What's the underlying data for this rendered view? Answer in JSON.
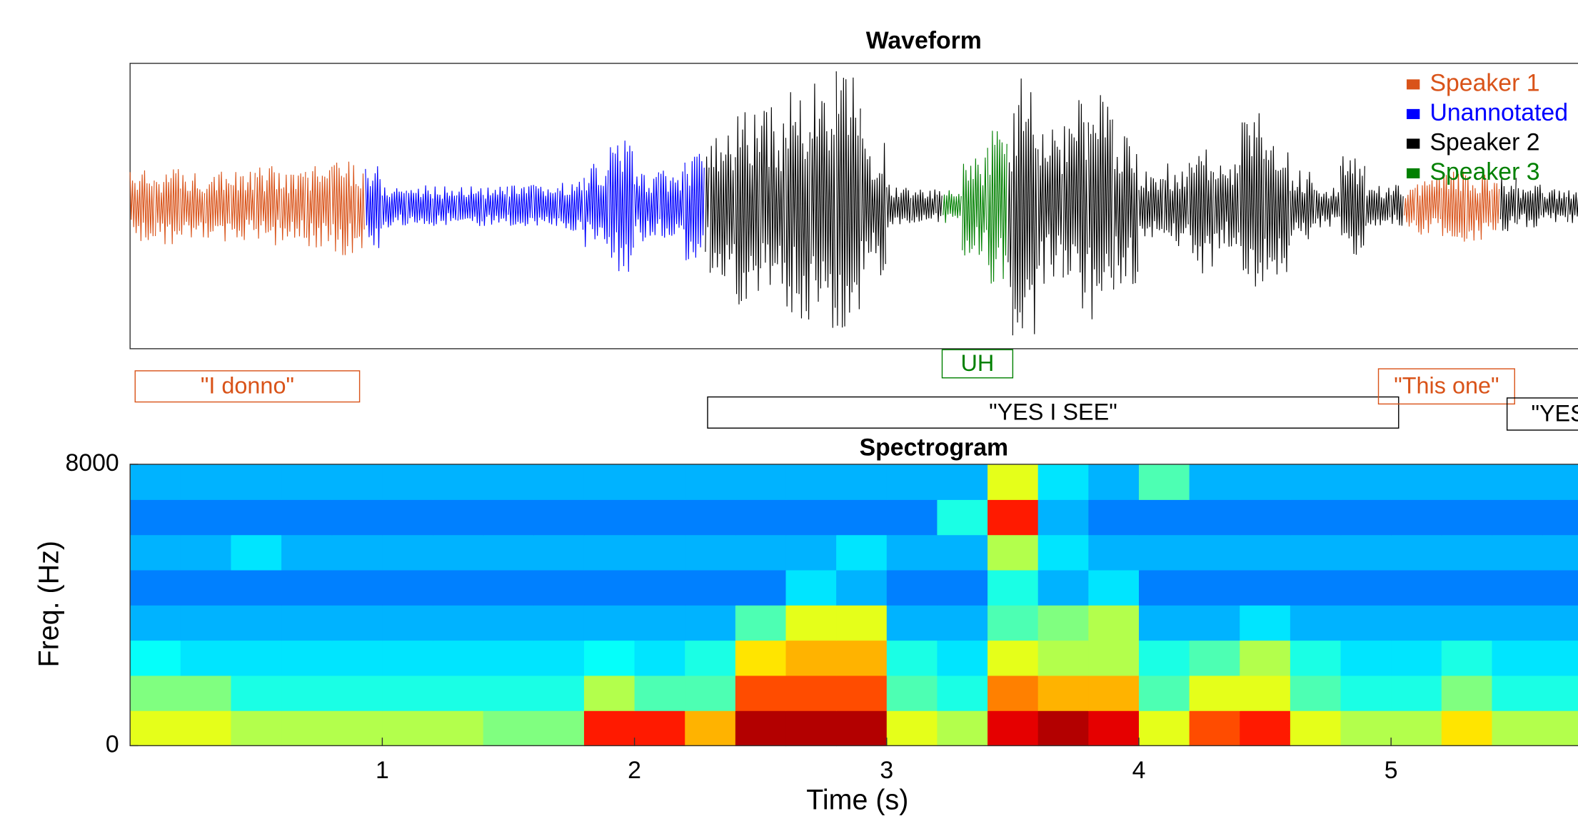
{
  "chart_data": [
    {
      "type": "waveform",
      "title": "Waveform",
      "xlim": [
        0,
        5.74
      ],
      "ylim": [
        -1,
        1
      ],
      "x": [
        0,
        0.1,
        0.2,
        0.3,
        0.4,
        0.5,
        0.6,
        0.7,
        0.8,
        0.9,
        1.0,
        1.1,
        1.2,
        1.3,
        1.4,
        1.5,
        1.6,
        1.7,
        1.8,
        1.9,
        2.0,
        2.1,
        2.2,
        2.3,
        2.4,
        2.5,
        2.6,
        2.7,
        2.8,
        2.9,
        3.0,
        3.1,
        3.2,
        3.3,
        3.4,
        3.5,
        3.6,
        3.7,
        3.8,
        3.9,
        4.0,
        4.1,
        4.2,
        4.3,
        4.4,
        4.5,
        4.6,
        4.7,
        4.8,
        4.9,
        5.0,
        5.1,
        5.2,
        5.3,
        5.4,
        5.5,
        5.6,
        5.7
      ],
      "values": [
        0.25,
        0.27,
        0.25,
        0.3,
        0.25,
        0.28,
        0.25,
        0.3,
        0.35,
        0.3,
        0.15,
        0.15,
        0.14,
        0.15,
        0.14,
        0.15,
        0.15,
        0.18,
        0.3,
        0.5,
        0.25,
        0.25,
        0.4,
        0.5,
        0.7,
        0.7,
        0.8,
        0.9,
        0.95,
        0.5,
        0.15,
        0.12,
        0.12,
        0.35,
        0.6,
        0.95,
        0.55,
        0.75,
        0.8,
        0.6,
        0.25,
        0.3,
        0.5,
        0.3,
        0.65,
        0.5,
        0.25,
        0.15,
        0.4,
        0.15,
        0.15,
        0.2,
        0.25,
        0.25,
        0.2,
        0.15,
        0.12,
        0.12
      ],
      "series": [
        {
          "name": "Speaker 1",
          "color": "#d95319"
        },
        {
          "name": "Unannotated",
          "color": "#0000ff"
        },
        {
          "name": "Speaker 2",
          "color": "#000000"
        },
        {
          "name": "Speaker 3",
          "color": "#008000"
        }
      ],
      "segments": [
        {
          "speaker": "Speaker 1",
          "start": 0,
          "end": 0.93
        },
        {
          "speaker": "Unannotated",
          "start": 0.93,
          "end": 2.28
        },
        {
          "speaker": "Speaker 2",
          "start": 2.28,
          "end": 3.22
        },
        {
          "speaker": "Speaker 3",
          "start": 3.22,
          "end": 3.48
        },
        {
          "speaker": "Speaker 2",
          "start": 3.48,
          "end": 5.05
        },
        {
          "speaker": "Speaker 1",
          "start": 5.05,
          "end": 5.43
        },
        {
          "speaker": "Speaker 2",
          "start": 5.43,
          "end": 5.8
        }
      ],
      "annotations": [
        {
          "text": "\"I donno\"",
          "speaker": "Speaker 1",
          "start": 0.02,
          "end": 0.91
        },
        {
          "text": "UH",
          "speaker": "Speaker 3",
          "start": 3.22,
          "end": 3.5
        },
        {
          "text": "\"YES I SEE\"",
          "speaker": "Speaker 2",
          "start": 2.29,
          "end": 5.03
        },
        {
          "text": "\"This one\"",
          "speaker": "Speaker 1",
          "start": 4.95,
          "end": 5.49
        },
        {
          "text": "\"YES\"",
          "speaker": "Speaker 2",
          "start": 5.46,
          "end": 5.9
        }
      ]
    },
    {
      "type": "heatmap",
      "title": "Spectrogram",
      "xlabel": "Time (s)",
      "ylabel": "Freq. (Hz)",
      "xlim": [
        0,
        5.74
      ],
      "xticks": [
        1,
        2,
        3,
        4,
        5
      ],
      "ylim": [
        0,
        8000
      ],
      "yticks": [
        0,
        8000
      ],
      "xbins": [
        0,
        0.2,
        0.4,
        0.6,
        0.8,
        1.0,
        1.2,
        1.4,
        1.6,
        1.8,
        2.0,
        2.2,
        2.4,
        2.6,
        2.8,
        3.0,
        3.2,
        3.4,
        3.6,
        3.8,
        4.0,
        4.2,
        4.4,
        4.6,
        4.8,
        5.0,
        5.2,
        5.4,
        5.6,
        5.8
      ],
      "ybins": [
        0,
        1000,
        2000,
        3000,
        4000,
        5000,
        6000,
        7000,
        8000
      ],
      "z": [
        [
          0.6,
          0.6,
          0.55,
          0.55,
          0.55,
          0.55,
          0.55,
          0.5,
          0.5,
          0.85,
          0.85,
          0.7,
          0.95,
          0.95,
          0.95,
          0.6,
          0.55,
          0.9,
          0.95,
          0.9,
          0.6,
          0.8,
          0.85,
          0.6,
          0.55,
          0.55,
          0.65,
          0.55,
          0.55
        ],
        [
          0.5,
          0.5,
          0.4,
          0.4,
          0.4,
          0.4,
          0.4,
          0.4,
          0.4,
          0.55,
          0.45,
          0.45,
          0.8,
          0.8,
          0.8,
          0.45,
          0.4,
          0.75,
          0.7,
          0.7,
          0.45,
          0.6,
          0.6,
          0.45,
          0.4,
          0.4,
          0.5,
          0.4,
          0.4
        ],
        [
          0.38,
          0.35,
          0.35,
          0.35,
          0.35,
          0.35,
          0.35,
          0.35,
          0.35,
          0.38,
          0.35,
          0.4,
          0.65,
          0.7,
          0.7,
          0.4,
          0.35,
          0.6,
          0.55,
          0.55,
          0.4,
          0.45,
          0.55,
          0.4,
          0.35,
          0.35,
          0.4,
          0.35,
          0.35
        ],
        [
          0.3,
          0.3,
          0.3,
          0.3,
          0.3,
          0.3,
          0.3,
          0.3,
          0.3,
          0.3,
          0.3,
          0.3,
          0.45,
          0.6,
          0.6,
          0.3,
          0.3,
          0.45,
          0.5,
          0.55,
          0.3,
          0.3,
          0.35,
          0.3,
          0.3,
          0.3,
          0.3,
          0.3,
          0.3
        ],
        [
          0.25,
          0.25,
          0.25,
          0.25,
          0.25,
          0.25,
          0.25,
          0.25,
          0.25,
          0.25,
          0.25,
          0.25,
          0.25,
          0.35,
          0.3,
          0.25,
          0.25,
          0.4,
          0.3,
          0.35,
          0.25,
          0.25,
          0.25,
          0.25,
          0.25,
          0.25,
          0.25,
          0.25,
          0.25
        ],
        [
          0.3,
          0.3,
          0.35,
          0.3,
          0.3,
          0.3,
          0.3,
          0.3,
          0.3,
          0.3,
          0.3,
          0.3,
          0.3,
          0.3,
          0.35,
          0.3,
          0.3,
          0.55,
          0.35,
          0.3,
          0.3,
          0.3,
          0.3,
          0.3,
          0.3,
          0.3,
          0.3,
          0.3,
          0.3
        ],
        [
          0.25,
          0.25,
          0.25,
          0.25,
          0.25,
          0.25,
          0.25,
          0.25,
          0.25,
          0.25,
          0.25,
          0.25,
          0.25,
          0.25,
          0.25,
          0.25,
          0.4,
          0.85,
          0.3,
          0.25,
          0.25,
          0.25,
          0.25,
          0.25,
          0.25,
          0.25,
          0.25,
          0.25,
          0.25
        ],
        [
          0.3,
          0.3,
          0.3,
          0.3,
          0.3,
          0.3,
          0.3,
          0.3,
          0.3,
          0.3,
          0.3,
          0.3,
          0.3,
          0.3,
          0.3,
          0.3,
          0.3,
          0.6,
          0.35,
          0.3,
          0.45,
          0.3,
          0.3,
          0.3,
          0.3,
          0.3,
          0.3,
          0.3,
          0.3
        ]
      ]
    }
  ]
}
